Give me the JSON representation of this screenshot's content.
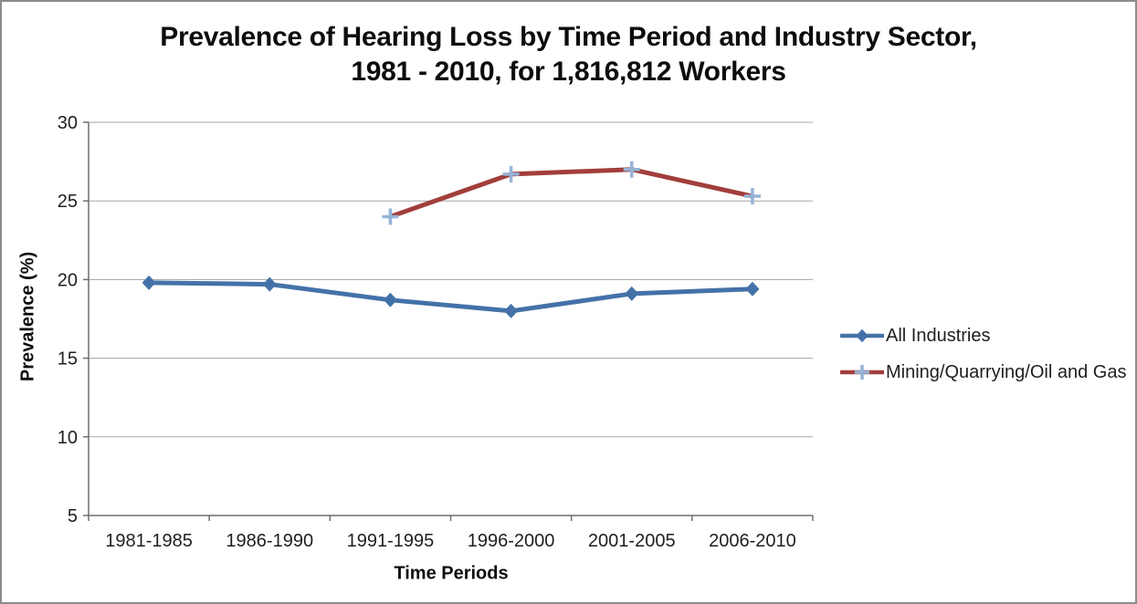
{
  "title": {
    "line1": "Prevalence of Hearing Loss by Time Period and Industry Sector,",
    "line2": "1981 - 2010, for 1,816,812 Workers"
  },
  "axes": {
    "x_title": "Time Periods",
    "y_title": "Prevalence (%)"
  },
  "colors": {
    "grid": "#A6A6A6",
    "axis": "#6F6F6F",
    "text": "#1F1F1F",
    "frame_border": "#8C8C8C",
    "background": "#FFFFFF",
    "series_all_industries": "#4472A8",
    "series_mining": "#A13E3B",
    "mining_marker": "#95B3D7"
  },
  "chart_data": {
    "type": "line",
    "title": "Prevalence of Hearing Loss by Time Period and Industry Sector, 1981 - 2010, for 1,816,812 Workers",
    "xlabel": "Time Periods",
    "ylabel": "Prevalence (%)",
    "categories": [
      "1981-1985",
      "1986-1990",
      "1991-1995",
      "1996-2000",
      "2001-2005",
      "2006-2010"
    ],
    "series": [
      {
        "name": "All Industries",
        "color": "#4472A8",
        "marker": "diamond",
        "marker_color": "#4472A8",
        "values": [
          19.8,
          19.7,
          18.7,
          18.0,
          19.1,
          19.4
        ]
      },
      {
        "name": "Mining/Quarrying/Oil and Gas",
        "color": "#A13E3B",
        "marker": "plus",
        "marker_color": "#95B3D7",
        "values": [
          null,
          null,
          24.0,
          26.7,
          27.0,
          25.3
        ]
      }
    ],
    "ylim": [
      5,
      30
    ],
    "yticks": [
      5,
      10,
      15,
      20,
      25,
      30
    ],
    "grid": true,
    "legend_position": "right"
  }
}
